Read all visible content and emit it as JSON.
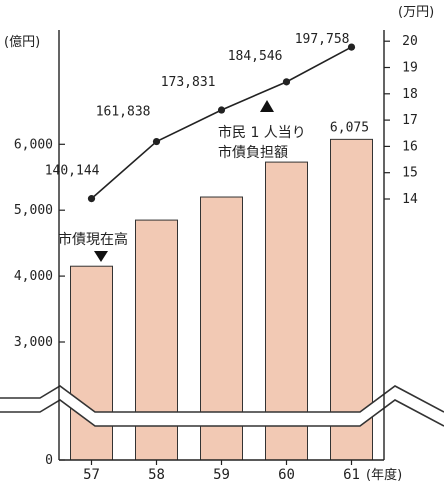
{
  "chart_data": {
    "type": "bar",
    "categories": [
      "57",
      "58",
      "59",
      "60",
      "61"
    ],
    "x_unit_label": "(年度)",
    "left_axis": {
      "unit_label": "(億円)",
      "tick_labels": [
        "0",
        "3,000",
        "4,000",
        "5,000",
        "6,000"
      ]
    },
    "right_axis": {
      "unit_label": "(万円)",
      "tick_labels": [
        "14",
        "15",
        "16",
        "17",
        "18",
        "19",
        "20"
      ]
    },
    "series": [
      {
        "name": "市債現在高",
        "kind": "bar",
        "axis": "left",
        "values": [
          4150,
          4850,
          5200,
          5730,
          6075
        ],
        "labels": [
          "",
          "",
          "",
          "",
          "6,075"
        ],
        "color": "#f2c9b4"
      },
      {
        "name": "市民1人当り市債負担額",
        "name_lines": [
          "市民 1 人当り",
          "市債負担額"
        ],
        "kind": "line",
        "axis": "right",
        "unit_note": "円",
        "values": [
          140144,
          161838,
          173831,
          184546,
          197758
        ],
        "labels": [
          "140,144",
          "161,838",
          "173,831",
          "184,546",
          "197,758"
        ],
        "color": "#222222"
      }
    ],
    "axis_break": true
  }
}
